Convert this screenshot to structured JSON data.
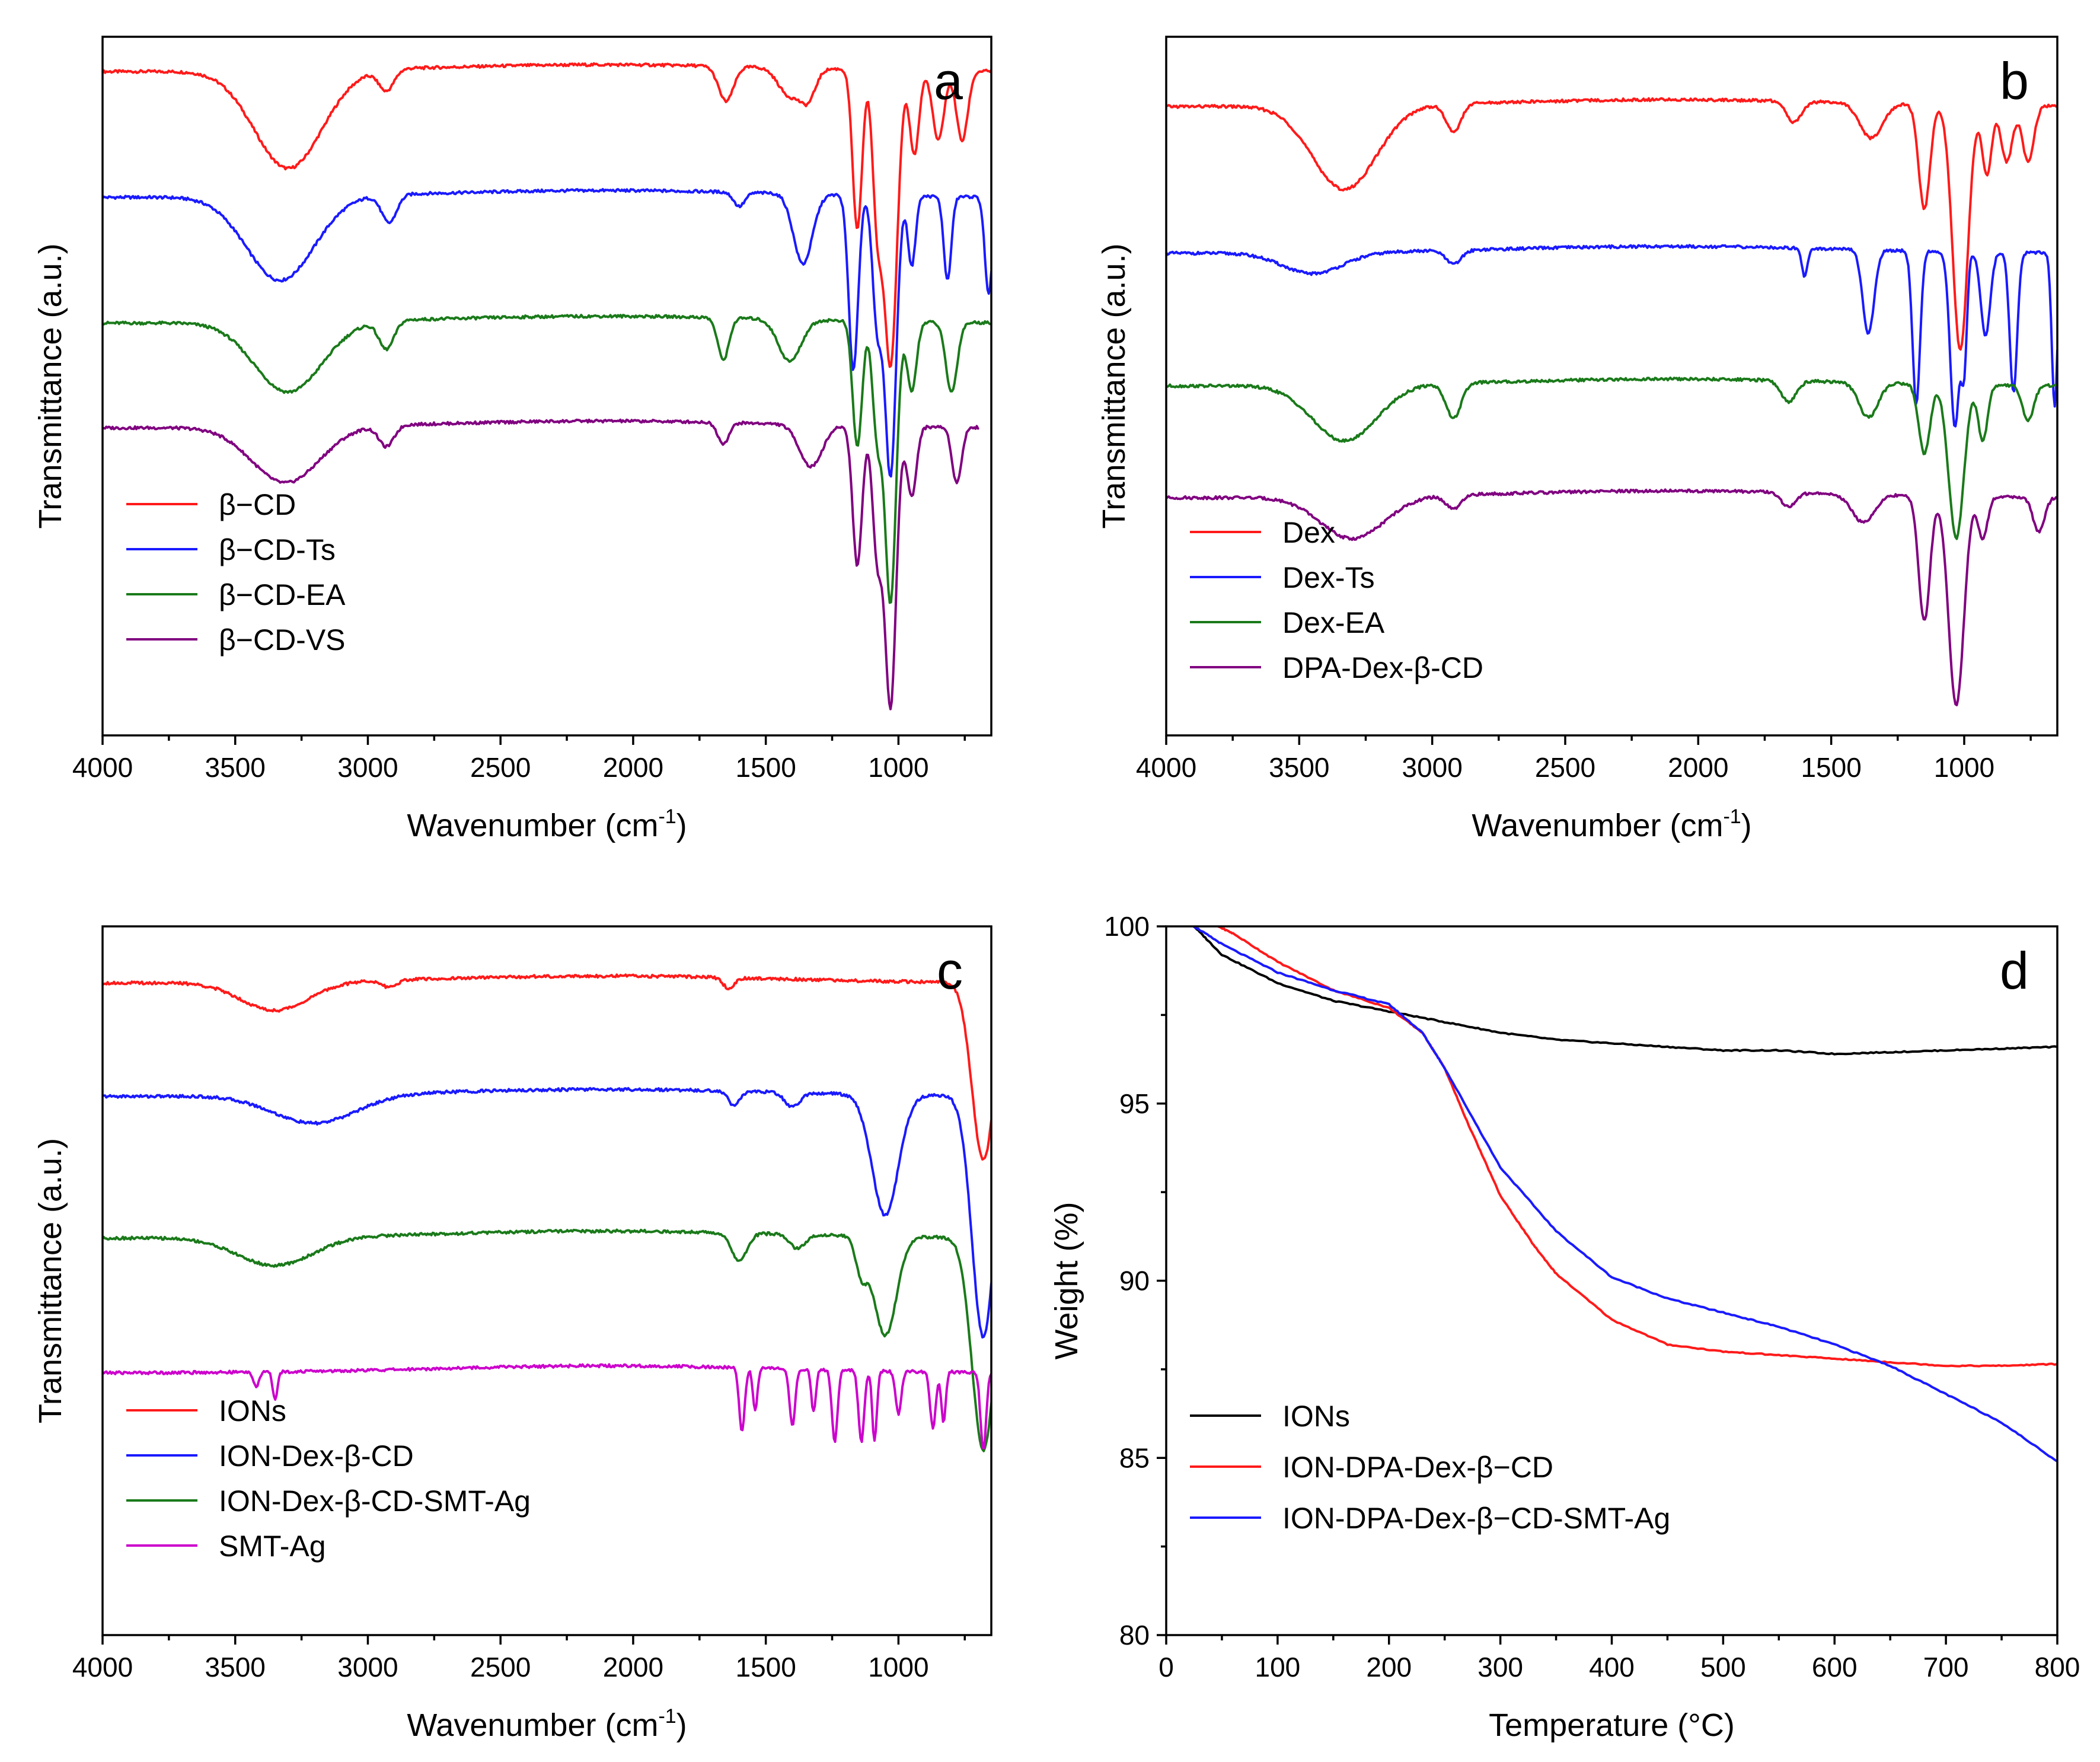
{
  "chart_data": [
    {
      "panel": "a",
      "type": "line",
      "xlabel": "Wavenumber (cm",
      "xlabel_sup": "-1",
      "xlabel_end": ")",
      "ylabel": "Transmittance (a.u.)",
      "xlim": [
        4000,
        650
      ],
      "xticks": [
        4000,
        3500,
        3000,
        2500,
        2000,
        1500,
        1000
      ],
      "legend_position": "bottom-left",
      "series": [
        {
          "name": "β−CD",
          "color": "#ff1a1a",
          "offset": 0.95,
          "scale": 1.0,
          "end": 650,
          "features": [
            [
              3300,
              0.14,
              180
            ],
            [
              2930,
              0.03,
              40
            ],
            [
              1650,
              0.05,
              40
            ],
            [
              1410,
              0.04,
              60
            ],
            [
              1340,
              0.04,
              40
            ],
            [
              1155,
              0.23,
              25
            ],
            [
              1080,
              0.2,
              25
            ],
            [
              1030,
              0.42,
              35
            ],
            [
              940,
              0.12,
              25
            ],
            [
              850,
              0.1,
              30
            ],
            [
              760,
              0.1,
              30
            ]
          ]
        },
        {
          "name": "β−CD-Ts",
          "color": "#1a1aff",
          "offset": 0.77,
          "scale": 1.0,
          "end": 650,
          "features": [
            [
              3330,
              0.12,
              180
            ],
            [
              2920,
              0.04,
              40
            ],
            [
              1600,
              0.02,
              30
            ],
            [
              1360,
              0.1,
              50
            ],
            [
              1170,
              0.25,
              25
            ],
            [
              1080,
              0.18,
              25
            ],
            [
              1030,
              0.4,
              30
            ],
            [
              950,
              0.1,
              20
            ],
            [
              815,
              0.12,
              20
            ],
            [
              660,
              0.14,
              20
            ]
          ]
        },
        {
          "name": "β−CD-EA",
          "color": "#1a7a1a",
          "offset": 0.59,
          "scale": 1.0,
          "end": 650,
          "features": [
            [
              3300,
              0.1,
              180
            ],
            [
              2930,
              0.04,
              40
            ],
            [
              1660,
              0.06,
              30
            ],
            [
              1410,
              0.06,
              60
            ],
            [
              1155,
              0.18,
              25
            ],
            [
              1080,
              0.16,
              25
            ],
            [
              1030,
              0.4,
              30
            ],
            [
              950,
              0.1,
              25
            ],
            [
              800,
              0.1,
              30
            ]
          ]
        },
        {
          "name": "β−CD-VS",
          "color": "#800080",
          "offset": 0.44,
          "scale": 1.0,
          "end": 700,
          "features": [
            [
              3310,
              0.08,
              180
            ],
            [
              2930,
              0.03,
              40
            ],
            [
              1660,
              0.03,
              30
            ],
            [
              1330,
              0.06,
              60
            ],
            [
              1155,
              0.2,
              25
            ],
            [
              1080,
              0.18,
              25
            ],
            [
              1030,
              0.4,
              30
            ],
            [
              950,
              0.1,
              25
            ],
            [
              780,
              0.08,
              25
            ]
          ]
        }
      ],
      "letter": "a"
    },
    {
      "panel": "b",
      "type": "line",
      "xlabel": "Wavenumber (cm",
      "xlabel_sup": "-1",
      "xlabel_end": ")",
      "ylabel": "Transmittance (a.u.)",
      "xlim": [
        4000,
        650
      ],
      "xticks": [
        4000,
        3500,
        3000,
        2500,
        2000,
        1500,
        1000
      ],
      "legend_position": "bottom-left",
      "series": [
        {
          "name": "Dex",
          "color": "#ff1a1a",
          "offset": 0.9,
          "scale": 1.0,
          "end": 650,
          "features": [
            [
              3330,
              0.12,
              170
            ],
            [
              2920,
              0.04,
              40
            ],
            [
              1640,
              0.03,
              40
            ],
            [
              1350,
              0.05,
              60
            ],
            [
              1150,
              0.15,
              30
            ],
            [
              1015,
              0.35,
              40
            ],
            [
              915,
              0.1,
              25
            ],
            [
              840,
              0.08,
              30
            ],
            [
              760,
              0.08,
              30
            ]
          ]
        },
        {
          "name": "Dex-Ts",
          "color": "#1a1aff",
          "offset": 0.69,
          "scale": 1.0,
          "end": 650,
          "features": [
            [
              3450,
              0.03,
              160
            ],
            [
              2920,
              0.02,
              40
            ],
            [
              1600,
              0.04,
              15
            ],
            [
              1360,
              0.12,
              30
            ],
            [
              1180,
              0.22,
              20
            ],
            [
              1035,
              0.25,
              25
            ],
            [
              1000,
              0.15,
              15
            ],
            [
              920,
              0.12,
              25
            ],
            [
              815,
              0.2,
              20
            ],
            [
              660,
              0.22,
              15
            ]
          ]
        },
        {
          "name": "Dex-EA",
          "color": "#1a7a1a",
          "offset": 0.5,
          "scale": 1.0,
          "end": 650,
          "features": [
            [
              3330,
              0.08,
              170
            ],
            [
              2920,
              0.05,
              40
            ],
            [
              1660,
              0.03,
              40
            ],
            [
              1360,
              0.05,
              50
            ],
            [
              1150,
              0.1,
              30
            ],
            [
              1030,
              0.22,
              40
            ],
            [
              930,
              0.08,
              25
            ],
            [
              760,
              0.05,
              30
            ]
          ]
        },
        {
          "name": "DPA-Dex-β-CD",
          "color": "#800080",
          "offset": 0.34,
          "scale": 1.0,
          "end": 650,
          "features": [
            [
              3300,
              0.06,
              170
            ],
            [
              2920,
              0.02,
              40
            ],
            [
              1660,
              0.02,
              40
            ],
            [
              1380,
              0.04,
              60
            ],
            [
              1150,
              0.18,
              30
            ],
            [
              1030,
              0.3,
              40
            ],
            [
              930,
              0.06,
              25
            ],
            [
              720,
              0.05,
              30
            ]
          ]
        }
      ],
      "letter": "b"
    },
    {
      "panel": "c",
      "type": "line",
      "xlabel": "Wavenumber (cm",
      "xlabel_sup": "-1",
      "xlabel_end": ")",
      "ylabel": "Transmittance (a.u.)",
      "xlim": [
        4000,
        650
      ],
      "xticks": [
        4000,
        3500,
        3000,
        2500,
        2000,
        1500,
        1000
      ],
      "legend_position": "bottom-left",
      "series": [
        {
          "name": "IONs",
          "color": "#ff1a1a",
          "offset": 0.92,
          "scale": 1.0,
          "end": 650,
          "features": [
            [
              3350,
              0.04,
              180
            ],
            [
              2920,
              0.01,
              40
            ],
            [
              1640,
              0.015,
              30
            ],
            [
              680,
              0.25,
              60
            ]
          ]
        },
        {
          "name": "ION-Dex-β-CD",
          "color": "#1a1aff",
          "offset": 0.76,
          "scale": 1.0,
          "end": 650,
          "features": [
            [
              3200,
              0.04,
              220
            ],
            [
              1620,
              0.02,
              30
            ],
            [
              1400,
              0.02,
              40
            ],
            [
              1050,
              0.17,
              70
            ],
            [
              680,
              0.34,
              60
            ]
          ]
        },
        {
          "name": "ION-Dex-β-CD-SMT-Ag",
          "color": "#1a7a1a",
          "offset": 0.56,
          "scale": 1.0,
          "end": 650,
          "features": [
            [
              3350,
              0.04,
              200
            ],
            [
              1600,
              0.04,
              40
            ],
            [
              1380,
              0.02,
              40
            ],
            [
              1140,
              0.05,
              30
            ],
            [
              1050,
              0.14,
              60
            ],
            [
              680,
              0.3,
              60
            ]
          ]
        },
        {
          "name": "SMT-Ag",
          "color": "#cc00cc",
          "offset": 0.37,
          "scale": 1.0,
          "end": 650,
          "features": [
            [
              3420,
              0.02,
              15
            ],
            [
              3350,
              0.04,
              12
            ],
            [
              1590,
              0.09,
              15
            ],
            [
              1540,
              0.06,
              12
            ],
            [
              1400,
              0.08,
              15
            ],
            [
              1320,
              0.06,
              12
            ],
            [
              1240,
              0.1,
              15
            ],
            [
              1140,
              0.1,
              15
            ],
            [
              1090,
              0.1,
              12
            ],
            [
              1000,
              0.06,
              15
            ],
            [
              870,
              0.08,
              15
            ],
            [
              830,
              0.07,
              12
            ],
            [
              680,
              0.11,
              15
            ]
          ]
        }
      ],
      "letter": "c"
    },
    {
      "panel": "d",
      "type": "line",
      "xlabel": "Temperature (°C)",
      "ylabel": "Weight (%)",
      "xlim": [
        0,
        800
      ],
      "ylim": [
        80,
        100
      ],
      "xticks": [
        0,
        100,
        200,
        300,
        400,
        500,
        600,
        700,
        800
      ],
      "yticks": [
        80,
        85,
        90,
        95,
        100
      ],
      "legend_position": "bottom-left",
      "series": [
        {
          "name": "IONs",
          "color": "#000000",
          "x": [
            25,
            50,
            100,
            150,
            200,
            250,
            300,
            350,
            400,
            450,
            500,
            550,
            600,
            650,
            700,
            750,
            800
          ],
          "y": [
            100,
            99.2,
            98.4,
            97.9,
            97.6,
            97.3,
            97.0,
            96.8,
            96.7,
            96.6,
            96.5,
            96.5,
            96.4,
            96.45,
            96.5,
            96.55,
            96.6
          ]
        },
        {
          "name": "ION-DPA-Dex-β−CD",
          "color": "#ff1a1a",
          "x": [
            25,
            40,
            60,
            100,
            150,
            200,
            230,
            250,
            270,
            300,
            330,
            350,
            400,
            450,
            500,
            550,
            600,
            650,
            700,
            750,
            800
          ],
          "y": [
            100,
            100.1,
            99.8,
            99.0,
            98.2,
            97.7,
            97.0,
            96.0,
            94.5,
            92.4,
            91.0,
            90.2,
            88.9,
            88.2,
            88.0,
            87.9,
            87.8,
            87.7,
            87.6,
            87.6,
            87.65
          ]
        },
        {
          "name": "ION-DPA-Dex-β−CD-SMT-Ag",
          "color": "#1a1aff",
          "x": [
            25,
            50,
            100,
            150,
            200,
            230,
            250,
            300,
            350,
            400,
            450,
            500,
            550,
            600,
            650,
            700,
            750,
            800
          ],
          "y": [
            100,
            99.5,
            98.7,
            98.2,
            97.8,
            97.0,
            96.0,
            93.2,
            91.4,
            90.1,
            89.5,
            89.1,
            88.7,
            88.2,
            87.6,
            86.8,
            86.0,
            84.9
          ]
        }
      ],
      "letter": "d"
    }
  ]
}
